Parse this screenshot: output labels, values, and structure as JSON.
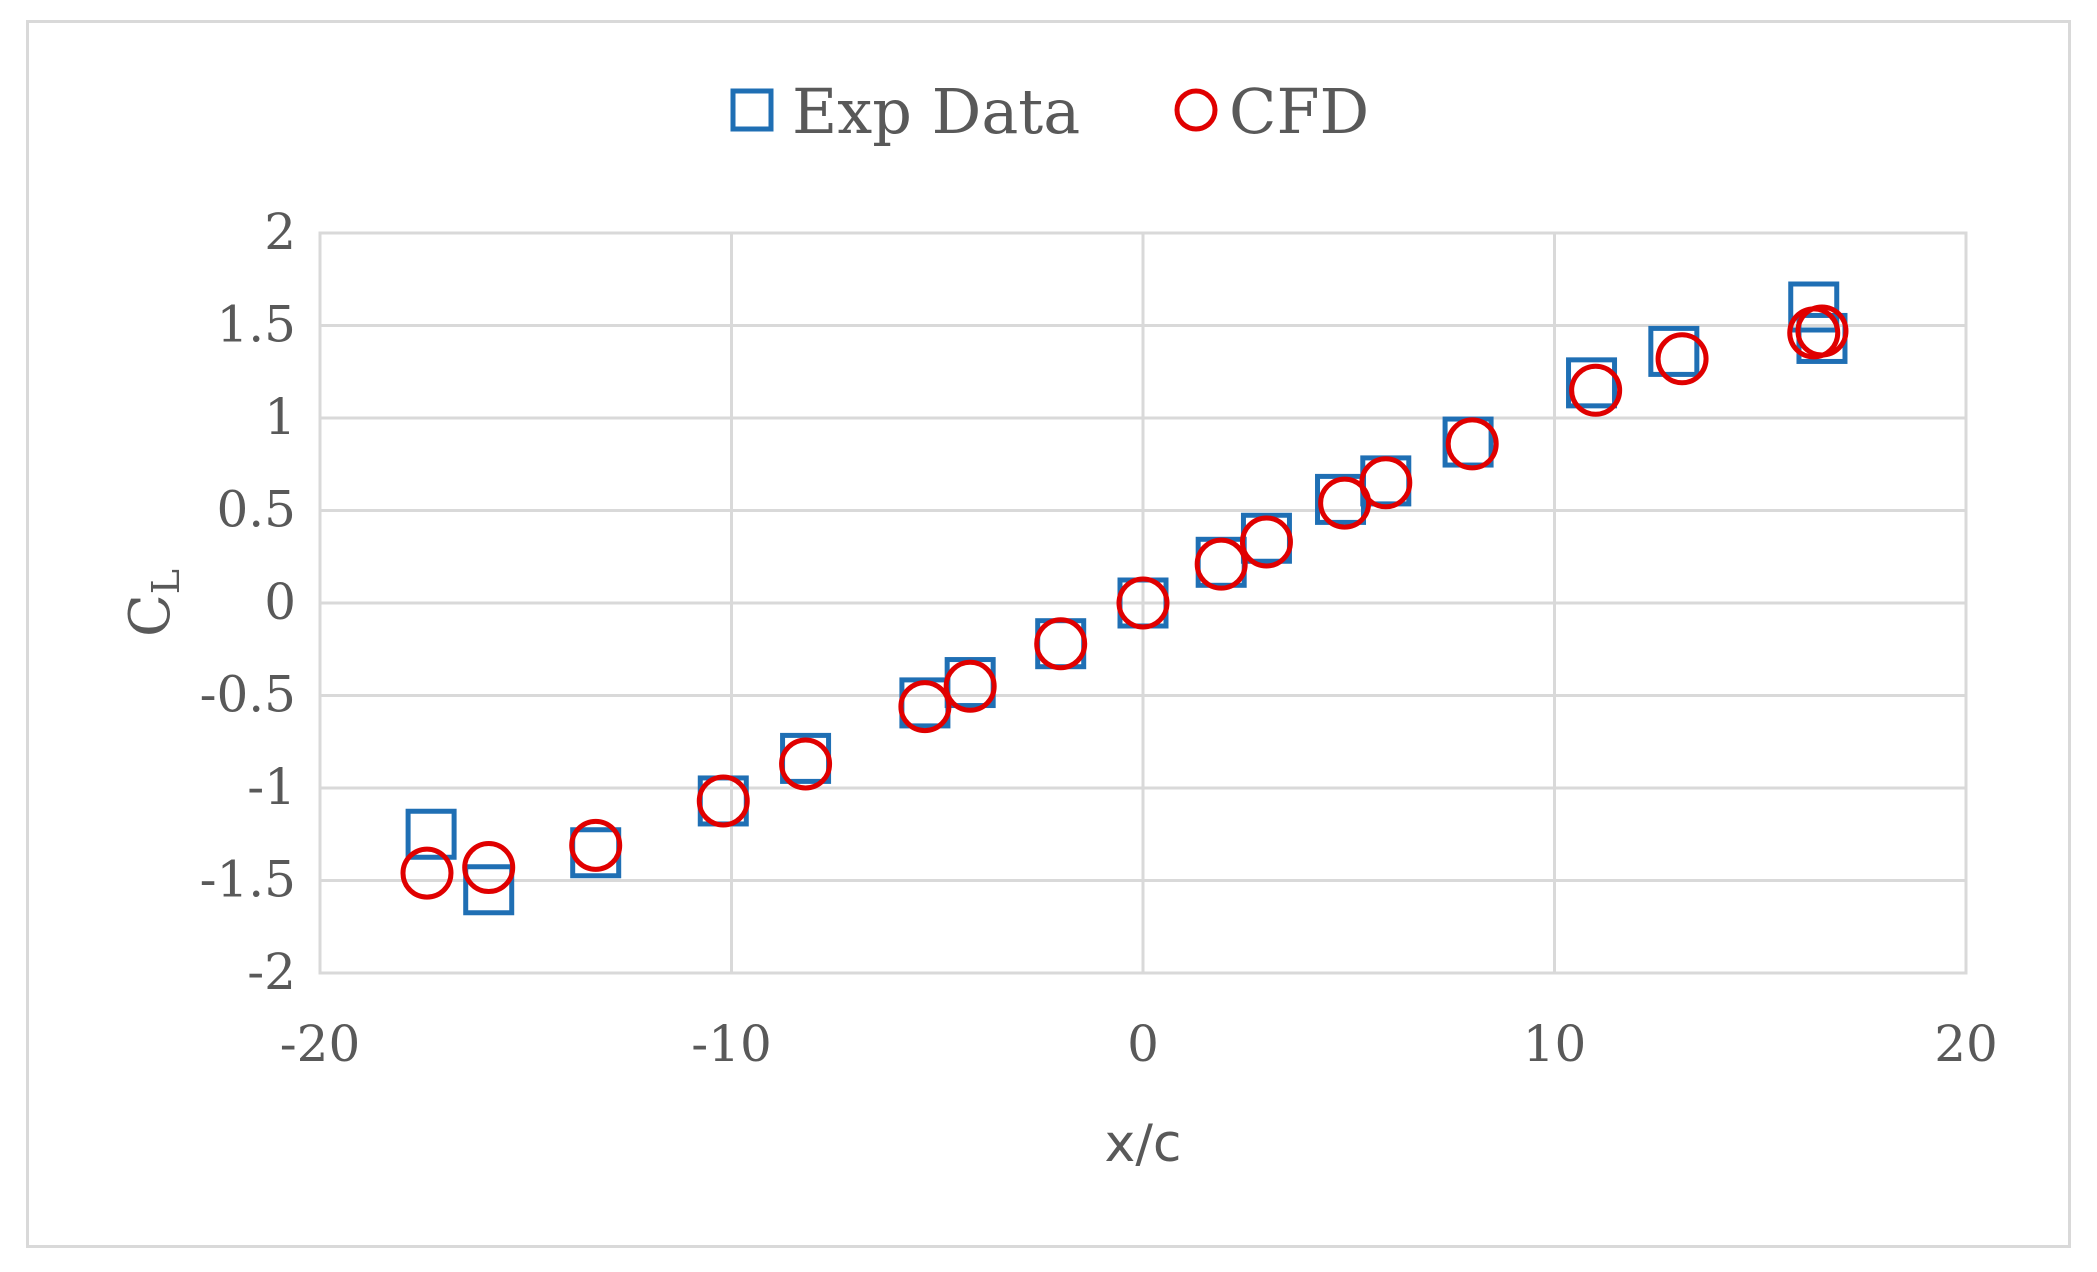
{
  "chart_data": {
    "type": "scatter",
    "title": "",
    "xlabel": "x/c",
    "ylabel": {
      "main": "C",
      "subscript": "L"
    },
    "xlim": [
      -20,
      20
    ],
    "ylim": [
      -2,
      2
    ],
    "xticks": [
      -20,
      -10,
      0,
      10,
      20
    ],
    "yticks": [
      2,
      1.5,
      1,
      0.5,
      0,
      -0.5,
      -1,
      -1.5,
      -2
    ],
    "xtick_labels": [
      "-20",
      "-10",
      "0",
      "10",
      "20"
    ],
    "ytick_labels": [
      "2",
      "1.5",
      "1",
      "0.5",
      "0",
      "-0.5",
      "-1",
      "-1.5",
      "-2"
    ],
    "grid": true,
    "legend_position": "top-center",
    "series": [
      {
        "name": "Exp Data",
        "marker": "square",
        "color": "#1f6fb4",
        "points": [
          [
            -17.3,
            -1.25
          ],
          [
            -15.9,
            -1.55
          ],
          [
            -13.3,
            -1.35
          ],
          [
            -10.2,
            -1.07
          ],
          [
            -8.2,
            -0.84
          ],
          [
            -5.3,
            -0.54
          ],
          [
            -4.2,
            -0.43
          ],
          [
            -2.0,
            -0.22
          ],
          [
            0.0,
            0.0
          ],
          [
            1.9,
            0.22
          ],
          [
            3.0,
            0.35
          ],
          [
            4.8,
            0.56
          ],
          [
            5.9,
            0.66
          ],
          [
            7.9,
            0.87
          ],
          [
            10.9,
            1.19
          ],
          [
            12.9,
            1.36
          ],
          [
            16.3,
            1.6
          ],
          [
            16.5,
            1.43
          ]
        ]
      },
      {
        "name": "CFD",
        "marker": "circle",
        "color": "#e00000",
        "points": [
          [
            -17.4,
            -1.46
          ],
          [
            -15.9,
            -1.43
          ],
          [
            -13.3,
            -1.31
          ],
          [
            -10.2,
            -1.07
          ],
          [
            -8.2,
            -0.87
          ],
          [
            -5.3,
            -0.56
          ],
          [
            -4.2,
            -0.45
          ],
          [
            -2.0,
            -0.22
          ],
          [
            0.0,
            0.0
          ],
          [
            1.9,
            0.21
          ],
          [
            3.0,
            0.33
          ],
          [
            4.9,
            0.54
          ],
          [
            5.9,
            0.65
          ],
          [
            8.0,
            0.86
          ],
          [
            11.0,
            1.15
          ],
          [
            13.1,
            1.32
          ],
          [
            16.3,
            1.46
          ],
          [
            16.5,
            1.47
          ]
        ]
      }
    ]
  }
}
